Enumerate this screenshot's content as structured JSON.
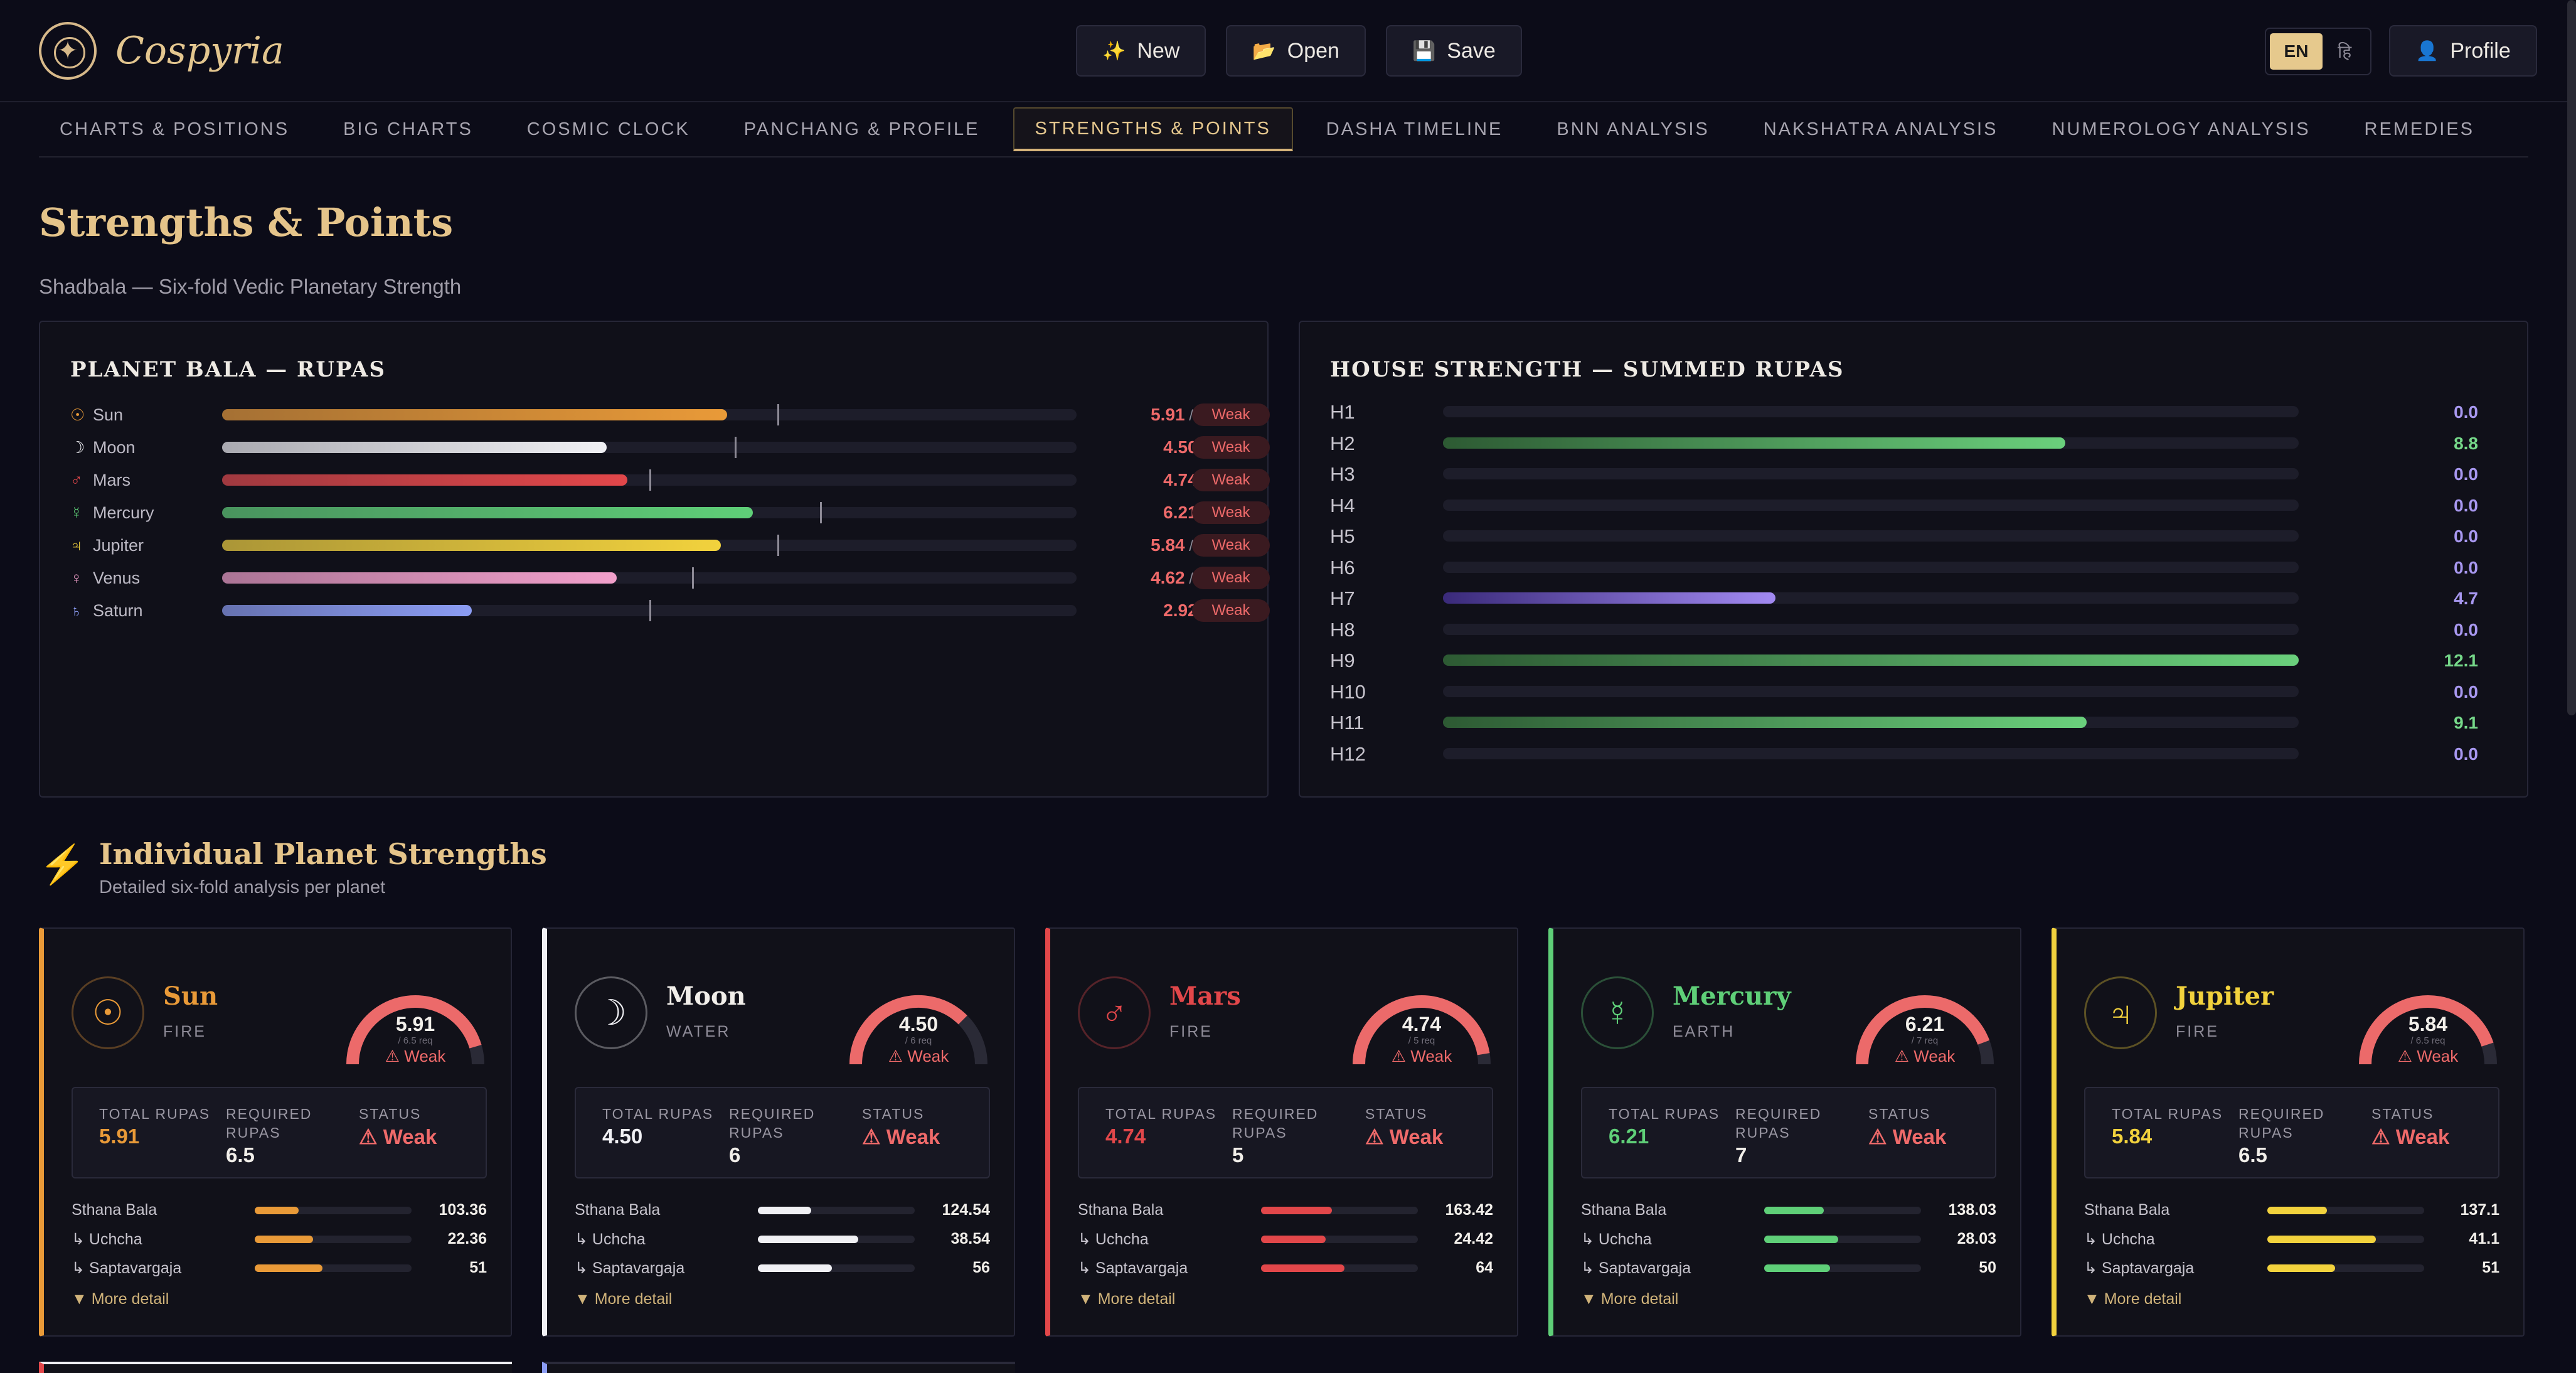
{
  "app": {
    "brand": "Cospyria"
  },
  "toolbar": {
    "new_label": "New",
    "new_icon": "✨",
    "open_label": "Open",
    "open_icon": "📂",
    "save_label": "Save",
    "save_icon": "💾",
    "lang_en": "EN",
    "lang_hi": "हि",
    "profile_label": "Profile",
    "profile_icon": "👤"
  },
  "tabs": [
    {
      "label": "CHARTS & POSITIONS",
      "active": false
    },
    {
      "label": "BIG CHARTS",
      "active": false
    },
    {
      "label": "COSMIC CLOCK",
      "active": false
    },
    {
      "label": "PANCHANG & PROFILE",
      "active": false
    },
    {
      "label": "STRENGTHS & POINTS",
      "active": true
    },
    {
      "label": "DASHA TIMELINE",
      "active": false
    },
    {
      "label": "BNN ANALYSIS",
      "active": false
    },
    {
      "label": "NAKSHATRA ANALYSIS",
      "active": false
    },
    {
      "label": "NUMEROLOGY ANALYSIS",
      "active": false
    },
    {
      "label": "REMEDIES",
      "active": false
    }
  ],
  "page": {
    "title": "Strengths & Points",
    "subtitle": "Shadbala — Six-fold Vedic Planetary Strength"
  },
  "planet_bala": {
    "title": "PLANET BALA — RUPAS",
    "scale_max": 10,
    "rows": [
      {
        "symbol": "☉",
        "name": "Sun",
        "value": "5.91",
        "required": "6.5",
        "status": "Weak",
        "color": "#e99a38"
      },
      {
        "symbol": "☽",
        "name": "Moon",
        "value": "4.50",
        "required": "6",
        "status": "Weak",
        "color": "#f0f0f4"
      },
      {
        "symbol": "♂",
        "name": "Mars",
        "value": "4.74",
        "required": "5",
        "status": "Weak",
        "color": "#e2474a"
      },
      {
        "symbol": "☿",
        "name": "Mercury",
        "value": "6.21",
        "required": "7",
        "status": "Weak",
        "color": "#5fcf78"
      },
      {
        "symbol": "♃",
        "name": "Jupiter",
        "value": "5.84",
        "required": "6.5",
        "status": "Weak",
        "color": "#f2d23d"
      },
      {
        "symbol": "♀",
        "name": "Venus",
        "value": "4.62",
        "required": "5.5",
        "status": "Weak",
        "color": "#f2a0cb"
      },
      {
        "symbol": "♄",
        "name": "Saturn",
        "value": "2.92",
        "required": "5",
        "status": "Weak",
        "color": "#8b9cf3"
      }
    ]
  },
  "house_strength": {
    "title": "HOUSE STRENGTH — SUMMED RUPAS",
    "scale_max": 12.1,
    "rows": [
      {
        "label": "H1",
        "value": "0.0"
      },
      {
        "label": "H2",
        "value": "8.8"
      },
      {
        "label": "H3",
        "value": "0.0"
      },
      {
        "label": "H4",
        "value": "0.0"
      },
      {
        "label": "H5",
        "value": "0.0"
      },
      {
        "label": "H6",
        "value": "0.0"
      },
      {
        "label": "H7",
        "value": "4.7"
      },
      {
        "label": "H8",
        "value": "0.0"
      },
      {
        "label": "H9",
        "value": "12.1"
      },
      {
        "label": "H10",
        "value": "0.0"
      },
      {
        "label": "H11",
        "value": "9.1"
      },
      {
        "label": "H12",
        "value": "0.0"
      }
    ]
  },
  "individual": {
    "bolt_icon": "⚡",
    "title": "Individual Planet Strengths",
    "subtitle": "Detailed six-fold analysis per planet",
    "labels": {
      "total": "TOTAL RUPAS",
      "required": "REQUIRED RUPAS",
      "status": "STATUS",
      "sthana": "Sthana Bala",
      "uchcha": "↳ Uchcha",
      "sapta": "↳ Saptavargaja",
      "more": "▼ More detail"
    },
    "cards": [
      {
        "name": "Sun",
        "symbol": "☉",
        "element": "FIRE",
        "total": "5.91",
        "required": "6.5",
        "gauge_req": "/ 6.5 req",
        "status": "⚠ Weak",
        "sthana": "103.36",
        "uchcha": "22.36",
        "sapta": "51",
        "sthana_frac": 0.28,
        "uchcha_frac": 0.37,
        "sapta_frac": 0.43,
        "color": "#e99a38"
      },
      {
        "name": "Moon",
        "symbol": "☽",
        "element": "WATER",
        "total": "4.50",
        "required": "6",
        "gauge_req": "/ 6 req",
        "status": "⚠ Weak",
        "sthana": "124.54",
        "uchcha": "38.54",
        "sapta": "56",
        "sthana_frac": 0.34,
        "uchcha_frac": 0.64,
        "sapta_frac": 0.47,
        "color": "#f0f0f4"
      },
      {
        "name": "Mars",
        "symbol": "♂",
        "element": "FIRE",
        "total": "4.74",
        "required": "5",
        "gauge_req": "/ 5 req",
        "status": "⚠ Weak",
        "sthana": "163.42",
        "uchcha": "24.42",
        "sapta": "64",
        "sthana_frac": 0.45,
        "uchcha_frac": 0.41,
        "sapta_frac": 0.53,
        "color": "#e2474a"
      },
      {
        "name": "Mercury",
        "symbol": "☿",
        "element": "EARTH",
        "total": "6.21",
        "required": "7",
        "gauge_req": "/ 7 req",
        "status": "⚠ Weak",
        "sthana": "138.03",
        "uchcha": "28.03",
        "sapta": "50",
        "sthana_frac": 0.38,
        "uchcha_frac": 0.47,
        "sapta_frac": 0.42,
        "color": "#5fcf78"
      },
      {
        "name": "Jupiter",
        "symbol": "♃",
        "element": "FIRE",
        "total": "5.84",
        "required": "6.5",
        "gauge_req": "/ 6.5 req",
        "status": "⚠ Weak",
        "sthana": "137.1",
        "uchcha": "41.1",
        "sapta": "51",
        "sthana_frac": 0.38,
        "uchcha_frac": 0.69,
        "sapta_frac": 0.43,
        "color": "#f2d23d"
      }
    ]
  }
}
